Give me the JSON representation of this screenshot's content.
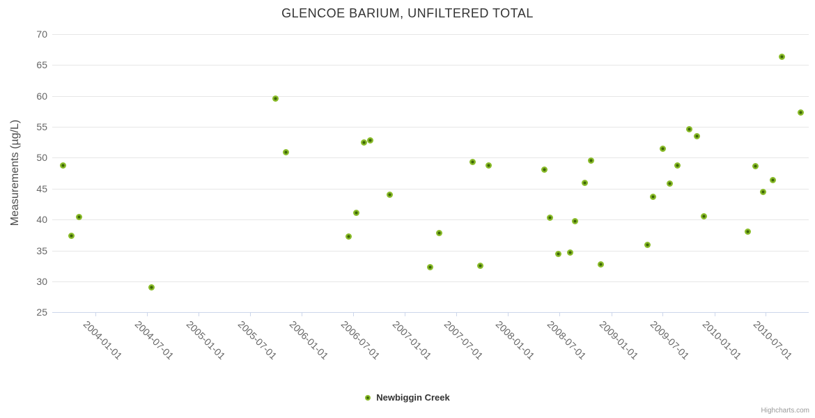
{
  "title": "GLENCOE BARIUM, UNFILTERED TOTAL",
  "watermark": "Highcharts.com",
  "colors": {
    "series_green_outer": "#8abc2a",
    "series_green_center": "#3d6606",
    "gridline": "#e6e6e6",
    "axis_line": "#ccd6eb",
    "title_text": "#333333",
    "axis_label_text": "#666666",
    "watermark_text": "#999999"
  },
  "chart_data": {
    "type": "scatter",
    "title": "GLENCOE BARIUM, UNFILTERED TOTAL",
    "xlabel": "",
    "ylabel": "Measurements (µg/L)",
    "grid": "horizontal-on",
    "legend_position": "bottom-center",
    "x_axis": {
      "type": "datetime",
      "tick_labels": [
        "2004-01-01",
        "2004-07-01",
        "2005-01-01",
        "2005-07-01",
        "2006-01-01",
        "2006-07-01",
        "2007-01-01",
        "2007-07-01",
        "2008-01-01",
        "2008-07-01",
        "2009-01-01",
        "2009-07-01",
        "2010-01-01",
        "2010-07-01"
      ],
      "label_rotation_deg": 45
    },
    "y_axis": {
      "title": "Measurements (µg/L)",
      "min": 25,
      "max": 70,
      "tick_interval": 5,
      "ticks": [
        70,
        65,
        60,
        55,
        50,
        45,
        40,
        35,
        30,
        25
      ]
    },
    "legend": [
      {
        "label": "Newbiggin Creek",
        "marker_color": "#8abc2a"
      }
    ],
    "series": [
      {
        "name": "Newbiggin Creek",
        "color": "#8abc2a",
        "data": [
          [
            "2003-09-09",
            48.7
          ],
          [
            "2003-10-07",
            37.4
          ],
          [
            "2003-11-04",
            40.4
          ],
          [
            "2004-07-17",
            29.0
          ],
          [
            "2005-09-29",
            59.6
          ],
          [
            "2005-11-06",
            50.9
          ],
          [
            "2006-06-16",
            37.2
          ],
          [
            "2006-07-13",
            41.1
          ],
          [
            "2006-08-08",
            52.5
          ],
          [
            "2006-09-01",
            52.8
          ],
          [
            "2006-11-08",
            44.0
          ],
          [
            "2007-04-01",
            32.3
          ],
          [
            "2007-05-03",
            37.8
          ],
          [
            "2007-08-28",
            49.3
          ],
          [
            "2007-09-26",
            32.5
          ],
          [
            "2007-10-24",
            48.7
          ],
          [
            "2008-05-10",
            48.1
          ],
          [
            "2008-05-28",
            40.3
          ],
          [
            "2008-06-27",
            34.4
          ],
          [
            "2008-08-07",
            34.7
          ],
          [
            "2008-08-26",
            39.7
          ],
          [
            "2008-09-29",
            45.9
          ],
          [
            "2008-10-22",
            49.5
          ],
          [
            "2008-11-25",
            32.7
          ],
          [
            "2009-05-08",
            35.9
          ],
          [
            "2009-05-28",
            43.7
          ],
          [
            "2009-07-01",
            51.4
          ],
          [
            "2009-07-26",
            45.8
          ],
          [
            "2009-08-23",
            48.8
          ],
          [
            "2009-10-05",
            54.6
          ],
          [
            "2009-11-01",
            53.5
          ],
          [
            "2009-11-24",
            40.5
          ],
          [
            "2010-04-28",
            38.1
          ],
          [
            "2010-05-25",
            48.6
          ],
          [
            "2010-06-23",
            44.5
          ],
          [
            "2010-07-27",
            46.4
          ],
          [
            "2010-08-29",
            66.3
          ],
          [
            "2010-11-03",
            57.3
          ]
        ]
      }
    ]
  }
}
